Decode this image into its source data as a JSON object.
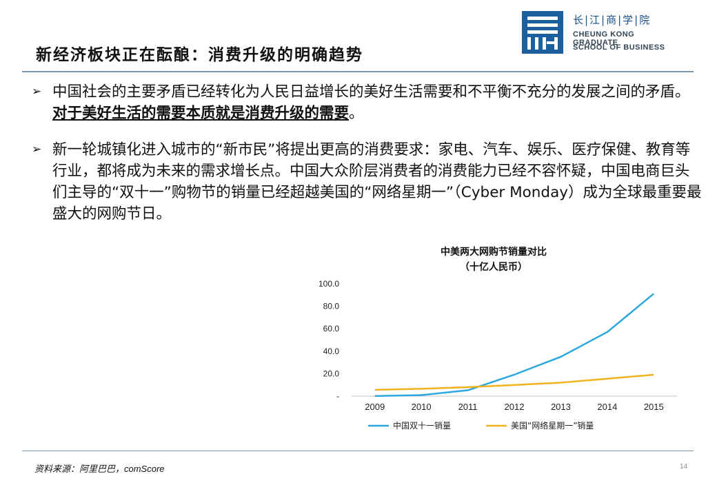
{
  "slide": {
    "title": "新经济板块正在酝酿：消费升级的明确趋势",
    "page_number": "14",
    "source": "资料来源：阿里巴巴，comScore"
  },
  "logo": {
    "cn": "长|江|商|学|院",
    "en_line1": "CHEUNG KONG GRADUATE",
    "en_line2": "SCHOOL OF BUSINESS",
    "color": "#1b5f9e"
  },
  "bullets": {
    "b1_text": "中国社会的主要矛盾已经转化为人民日益增长的美好生活需要和不平衡不充分的发展之间的矛盾。",
    "b1_emph": "对于美好生活的需要本质就是消费升级的需要",
    "b1_end": "。",
    "b2_text": "新一轮城镇化进入城市的“新市民”将提出更高的消费要求：家电、汽车、娱乐、医疗保健、教育等行业，都将成为未来的需求增长点。中国大众阶层消费者的消费能力已经不容怀疑，中国电商巨头们主导的“双十一”购物节的销量已经超越美国的“网络星期一”（Cyber Monday）成为全球最重要最盛大的网购节日。"
  },
  "chart_data": {
    "type": "line",
    "title": "中美两大网购节销量对比",
    "subtitle": "（十亿人民币）",
    "categories": [
      "2009",
      "2010",
      "2011",
      "2012",
      "2013",
      "2014",
      "2015"
    ],
    "yticks": [
      "-",
      "20.0",
      "40.0",
      "60.0",
      "80.0",
      "100.0"
    ],
    "ylim": [
      0,
      100
    ],
    "legend_position": "bottom",
    "series": [
      {
        "name": "中国双十一销量",
        "color": "#2aa7dc",
        "values": [
          0.05,
          0.9,
          5.2,
          19.1,
          35.0,
          57.1,
          91.2
        ]
      },
      {
        "name": "美国“网络星期一”销量",
        "color": "#f2b21b",
        "values": [
          5.6,
          6.5,
          8.0,
          9.9,
          12.0,
          15.5,
          19.0
        ]
      }
    ]
  }
}
